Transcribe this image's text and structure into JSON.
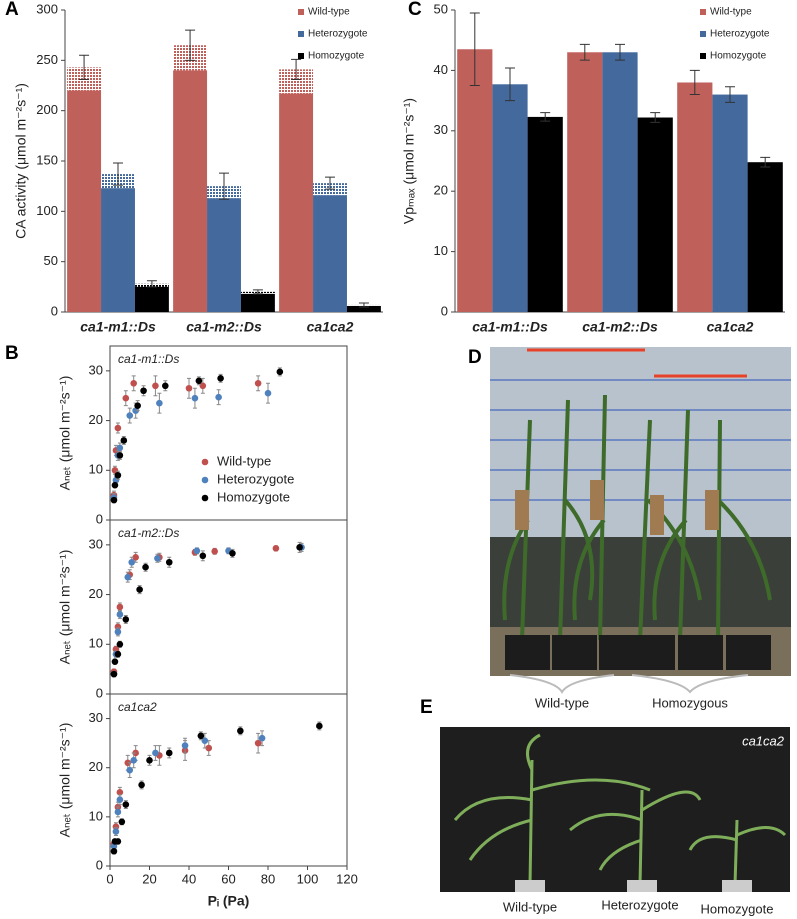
{
  "chart_data": [
    {
      "type": "bar",
      "panel": "A",
      "ylabel": "CA activity (μmol m⁻²s⁻¹)",
      "categories": [
        "ca1-m1::Ds",
        "ca1-m2::Ds",
        "ca1ca2"
      ],
      "ylim": [
        0,
        300
      ],
      "yticks": [
        0,
        50,
        100,
        150,
        200,
        250,
        300
      ],
      "legend": "upper right",
      "series": [
        {
          "name": "Wild-type",
          "color": "#c0605b",
          "values": [
            243,
            265,
            241
          ],
          "solid_values": [
            220,
            240,
            217
          ],
          "errors": [
            12,
            15,
            10
          ]
        },
        {
          "name": "Heterozygote",
          "color": "#44699c",
          "values": [
            137,
            125,
            128
          ],
          "solid_values": [
            123,
            113,
            116
          ],
          "errors": [
            11,
            13,
            6
          ]
        },
        {
          "name": "Homozygote",
          "color": "#000000",
          "values": [
            28,
            20,
            7
          ],
          "solid_values": [
            25,
            18,
            6
          ],
          "errors": [
            3,
            2,
            2
          ]
        }
      ]
    },
    {
      "type": "bar",
      "panel": "C",
      "ylabel": "Vpₘₐₓ (μmol m⁻²s⁻¹)",
      "categories": [
        "ca1-m1::Ds",
        "ca1-m2::Ds",
        "ca1ca2"
      ],
      "ylim": [
        0,
        50
      ],
      "yticks": [
        0,
        10,
        20,
        30,
        40,
        50
      ],
      "legend": "upper right",
      "series": [
        {
          "name": "Wild-type",
          "color": "#c0605b",
          "values": [
            43.5,
            43,
            38
          ],
          "errors": [
            6,
            1.3,
            2
          ]
        },
        {
          "name": "Heterozygote",
          "color": "#44699c",
          "values": [
            37.7,
            43,
            36
          ],
          "errors": [
            2.7,
            1.3,
            1.3
          ]
        },
        {
          "name": "Homozygote",
          "color": "#000000",
          "values": [
            32.3,
            32.2,
            24.8
          ],
          "errors": [
            0.7,
            0.8,
            0.8
          ]
        }
      ]
    },
    {
      "type": "scatter",
      "panel": "B",
      "annotation": "ca1-m1::Ds",
      "ylabel": "Aₙₑₜ (μmol m⁻²s⁻¹)",
      "xlim": [
        0,
        120
      ],
      "ylim": [
        0,
        35
      ],
      "yticks": [
        0,
        10,
        20,
        30
      ],
      "legend": "center right",
      "series": [
        {
          "name": "Wild-type",
          "color": "#c0504d",
          "x": [
            2,
            2.5,
            3,
            4,
            8,
            12,
            23,
            40,
            47,
            75
          ],
          "y": [
            5,
            10,
            14,
            18.5,
            24.5,
            27.5,
            27,
            26.5,
            27,
            27.5
          ],
          "errors": [
            0.8,
            0.8,
            1,
            1,
            1.5,
            1.5,
            2,
            2,
            1.5,
            1.5
          ]
        },
        {
          "name": "Heterozygote",
          "color": "#4f81bd",
          "x": [
            2,
            3,
            4,
            5,
            10,
            13,
            25,
            43,
            55,
            80
          ],
          "y": [
            4.5,
            8,
            13,
            14.5,
            21,
            22,
            23.5,
            24.5,
            24.7,
            25.5
          ],
          "errors": [
            0.8,
            0.8,
            1,
            1,
            1.5,
            1.5,
            2,
            2,
            1.5,
            2
          ]
        },
        {
          "name": "Homozygote",
          "color": "#000000",
          "x": [
            2,
            2.5,
            4,
            5,
            7,
            14,
            17,
            28,
            45,
            56,
            86
          ],
          "y": [
            4,
            7,
            9,
            13,
            16,
            23,
            26,
            27,
            28,
            28.5,
            29.8
          ],
          "errors": [
            0.5,
            0.5,
            0.8,
            0.8,
            0.8,
            1,
            1,
            1,
            0.8,
            0.8,
            0.8
          ]
        }
      ]
    },
    {
      "type": "scatter",
      "annotation": "ca1-m2::Ds",
      "ylabel": "Aₙₑₜ (μmol m⁻²s⁻¹)",
      "xlim": [
        0,
        120
      ],
      "ylim": [
        0,
        35
      ],
      "yticks": [
        0,
        10,
        20,
        30
      ],
      "series": [
        {
          "name": "Wild-type",
          "color": "#c0504d",
          "x": [
            2,
            3,
            4,
            5,
            10,
            13,
            25,
            43,
            53,
            84
          ],
          "y": [
            4.5,
            9,
            13.5,
            17.5,
            24,
            27.5,
            27.5,
            28.5,
            28.7,
            29.3
          ],
          "errors": [
            0.5,
            0.6,
            0.8,
            0.8,
            1,
            1,
            0.8,
            0.6,
            0.6,
            0.5
          ]
        },
        {
          "name": "Heterozygote",
          "color": "#4f81bd",
          "x": [
            2,
            3,
            4,
            5,
            9,
            11,
            24,
            44,
            60,
            97
          ],
          "y": [
            4,
            8,
            12.5,
            16,
            23.5,
            26.5,
            27.3,
            28.8,
            28.8,
            29.5
          ],
          "errors": [
            0.5,
            0.6,
            0.8,
            0.8,
            1,
            1,
            0.8,
            0.6,
            0.6,
            0.8
          ]
        },
        {
          "name": "Homozygote",
          "color": "#000000",
          "x": [
            2,
            2.5,
            4,
            5,
            8,
            15,
            18,
            30,
            47,
            62,
            96
          ],
          "y": [
            4,
            6.5,
            8,
            10,
            15,
            21,
            25.5,
            26.5,
            27.8,
            28.3,
            29.5
          ],
          "errors": [
            0.5,
            0.5,
            0.6,
            0.6,
            0.8,
            0.8,
            0.8,
            1,
            1,
            0.8,
            1
          ]
        }
      ]
    },
    {
      "type": "scatter",
      "annotation": "ca1ca2",
      "ylabel": "Aₙₑₜ (μmol m⁻²s⁻¹)",
      "xlabel": "Pᵢ (Pa)",
      "xlim": [
        0,
        120
      ],
      "xticks": [
        0,
        20,
        40,
        60,
        80,
        100,
        120
      ],
      "ylim": [
        0,
        35
      ],
      "yticks": [
        0,
        10,
        20,
        30
      ],
      "series": [
        {
          "name": "Wild-type",
          "color": "#c0504d",
          "x": [
            2,
            3,
            4,
            5,
            9,
            13,
            25,
            38,
            50,
            75
          ],
          "y": [
            4.5,
            8,
            12,
            15,
            21,
            23,
            22.5,
            23.5,
            24,
            25
          ],
          "errors": [
            0.8,
            0.8,
            1,
            1,
            1.5,
            1.5,
            2,
            2,
            1.5,
            2
          ]
        },
        {
          "name": "Heterozygote",
          "color": "#4f81bd",
          "x": [
            2,
            3,
            4,
            5,
            10,
            12,
            23,
            38,
            48,
            77
          ],
          "y": [
            4,
            7,
            11,
            13.5,
            19.5,
            21.5,
            23,
            24.5,
            25.5,
            26
          ],
          "errors": [
            0.8,
            0.8,
            1,
            1,
            1.5,
            1.5,
            1.5,
            1.5,
            1.5,
            1.5
          ]
        },
        {
          "name": "Homozygote",
          "color": "#000000",
          "x": [
            2,
            2.5,
            4,
            6,
            8,
            16,
            20,
            30,
            46,
            66,
            106
          ],
          "y": [
            3,
            5,
            5,
            9,
            12.5,
            16.5,
            21.5,
            23,
            26.5,
            27.5,
            28.5
          ],
          "errors": [
            0.5,
            0.5,
            0.5,
            0.6,
            0.8,
            0.8,
            1,
            1,
            0.8,
            0.8,
            0.8
          ]
        }
      ]
    }
  ],
  "photos": [
    {
      "panel": "D",
      "captions": [
        "Wild-type",
        "Homozygous"
      ]
    },
    {
      "panel": "E",
      "annotation": "ca1ca2",
      "captions": [
        "Wild-type",
        "Heterozygote",
        "Homozygote"
      ]
    }
  ]
}
